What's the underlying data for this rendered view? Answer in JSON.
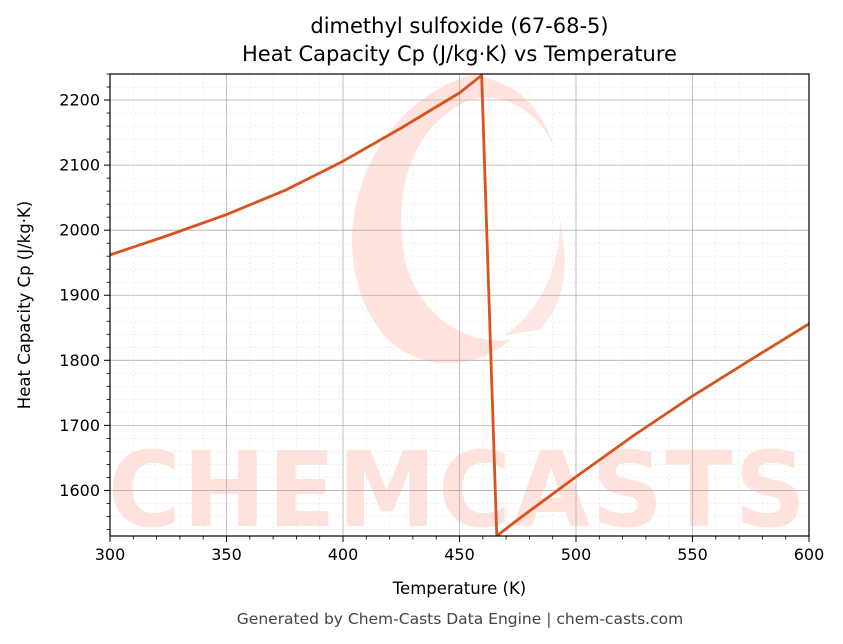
{
  "chart_data": {
    "type": "line",
    "title": "dimethyl sulfoxide (67-68-5)",
    "subtitle": "Heat Capacity Cp (J/kg·K) vs Temperature",
    "xlabel": "Temperature (K)",
    "ylabel": "Heat Capacity Cp (J/kg·K)",
    "xlim": [
      300,
      600
    ],
    "ylim": [
      1530,
      2240
    ],
    "x_ticks": [
      300,
      350,
      400,
      450,
      500,
      550,
      600
    ],
    "y_ticks": [
      1600,
      1700,
      1800,
      1900,
      2000,
      2100,
      2200
    ],
    "grid": true,
    "series": [
      {
        "color": "#d9521f",
        "x": [
          300,
          325,
          350,
          375,
          400,
          425,
          450,
          459.5,
          466,
          475,
          500,
          525,
          550,
          575,
          600
        ],
        "y": [
          1962,
          1992,
          2024,
          2061,
          2106,
          2157,
          2211,
          2238,
          1530,
          1555,
          1621,
          1685,
          1745,
          1801,
          1856
        ]
      }
    ]
  },
  "watermark": {
    "text": "CHEMCASTS",
    "color": "#ffd9d0"
  },
  "footer": "Generated by Chem-Casts Data Engine | chem-casts.com"
}
